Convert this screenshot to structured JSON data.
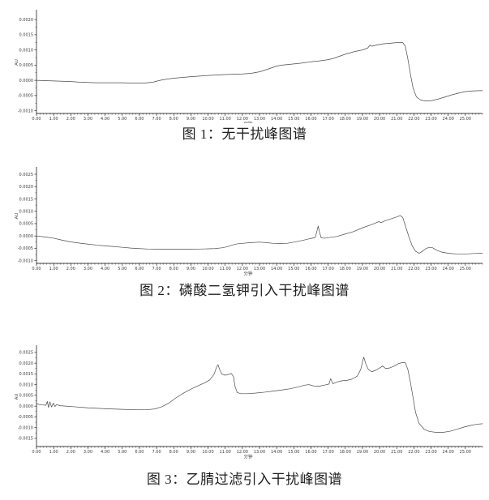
{
  "page": {
    "background": "#ffffff",
    "text_color": "#1f1f1f"
  },
  "figures": [
    {
      "caption": "图 1：无干扰峰图谱"
    },
    {
      "caption": "图 2：磷酸二氢钾引入干扰峰图谱"
    },
    {
      "caption": "图 3：乙腈过滤引入干扰峰图谱"
    }
  ],
  "chart_data": [
    {
      "type": "line",
      "title": "无干扰峰图谱",
      "xlabel": "分钟",
      "ylabel": "AU",
      "xlim": [
        0,
        26
      ],
      "ylim": [
        -0.00109,
        0.00227
      ],
      "x_tick_start": 0,
      "x_tick_end": 25,
      "x_tick_step": 1,
      "x_minor_step": 0.2,
      "x_tick_decimals": 2,
      "y_tick_decimals": 4,
      "y_ticks": [
        0.002,
        0.0015,
        0.001,
        0.0005,
        0.0,
        -0.0005,
        -0.001
      ],
      "grid": false,
      "legend": false,
      "axis_color": "#000000",
      "line_color": "#4a4a4a",
      "tick_label_color": "#3c3c3c",
      "series": [
        {
          "name": "blank-baseline",
          "points": [
            [
              0,
              0
            ],
            [
              0.5,
              -1e-05
            ],
            [
              1,
              -2e-05
            ],
            [
              1.5,
              -3e-05
            ],
            [
              2,
              -4e-05
            ],
            [
              2.5,
              -6e-05
            ],
            [
              3,
              -7e-05
            ],
            [
              3.5,
              -8e-05
            ],
            [
              4,
              -8e-05
            ],
            [
              5,
              -8e-05
            ],
            [
              5.5,
              -9e-05
            ],
            [
              6.3,
              -9e-05
            ],
            [
              6.8,
              -6e-05
            ],
            [
              7.2,
              0
            ],
            [
              7.6,
              4e-05
            ],
            [
              8,
              7e-05
            ],
            [
              9,
              0.00012
            ],
            [
              10,
              0.00016
            ],
            [
              11,
              0.00019
            ],
            [
              12,
              0.00021
            ],
            [
              12.5,
              0.00023
            ],
            [
              13,
              0.00028
            ],
            [
              13.5,
              0.00037
            ],
            [
              14,
              0.00047
            ],
            [
              14.3,
              0.0005
            ],
            [
              15,
              0.00054
            ],
            [
              15.5,
              0.00057
            ],
            [
              16,
              0.00061
            ],
            [
              16.5,
              0.00064
            ],
            [
              17,
              0.00068
            ],
            [
              17.3,
              0.00072
            ],
            [
              17.6,
              0.00078
            ],
            [
              18,
              0.00086
            ],
            [
              18.5,
              0.00094
            ],
            [
              19,
              0.001
            ],
            [
              19.3,
              0.00106
            ],
            [
              19.45,
              0.00116
            ],
            [
              19.55,
              0.00112
            ],
            [
              19.8,
              0.00116
            ],
            [
              20.2,
              0.0012
            ],
            [
              20.6,
              0.00122
            ],
            [
              21,
              0.00124
            ],
            [
              21.35,
              0.00124
            ],
            [
              21.5,
              0.00112
            ],
            [
              21.65,
              0.0007
            ],
            [
              21.8,
              0.0002
            ],
            [
              21.95,
              -0.00025
            ],
            [
              22.15,
              -0.00055
            ],
            [
              22.4,
              -0.00065
            ],
            [
              22.7,
              -0.00068
            ],
            [
              23,
              -0.00067
            ],
            [
              23.4,
              -0.00062
            ],
            [
              23.8,
              -0.00055
            ],
            [
              24.2,
              -0.00048
            ],
            [
              24.6,
              -0.00042
            ],
            [
              25,
              -0.00037
            ],
            [
              25.4,
              -0.00035
            ],
            [
              25.8,
              -0.00034
            ],
            [
              26,
              -0.00034
            ]
          ]
        }
      ]
    },
    {
      "type": "line",
      "title": "磷酸二氢钾引入干扰峰图谱",
      "xlabel": "分钟",
      "ylabel": "AU",
      "xlim": [
        0,
        26
      ],
      "ylim": [
        -0.00111,
        0.00273
      ],
      "x_tick_start": 0,
      "x_tick_end": 25,
      "x_tick_step": 1,
      "x_minor_step": 0.2,
      "x_tick_decimals": 2,
      "y_tick_decimals": 4,
      "y_ticks": [
        0.0025,
        0.002,
        0.0015,
        0.001,
        0.0005,
        0.0,
        -0.0005,
        -0.001
      ],
      "grid": false,
      "legend": false,
      "axis_color": "#000000",
      "line_color": "#4a4a4a",
      "tick_label_color": "#3c3c3c",
      "series": [
        {
          "name": "kh2po4-baseline",
          "points": [
            [
              0,
              0
            ],
            [
              0.5,
              -4e-05
            ],
            [
              1,
              -9e-05
            ],
            [
              1.5,
              -0.00017
            ],
            [
              2,
              -0.00024
            ],
            [
              2.5,
              -0.00029
            ],
            [
              3,
              -0.00033
            ],
            [
              3.5,
              -0.00037
            ],
            [
              4,
              -0.0004
            ],
            [
              4.5,
              -0.00043
            ],
            [
              5,
              -0.00046
            ],
            [
              5.5,
              -0.00049
            ],
            [
              6,
              -0.00051
            ],
            [
              6.5,
              -0.00053
            ],
            [
              7,
              -0.00054
            ],
            [
              8,
              -0.00054
            ],
            [
              9,
              -0.00054
            ],
            [
              9.5,
              -0.00053
            ],
            [
              10,
              -0.00052
            ],
            [
              10.4,
              -0.00051
            ],
            [
              10.8,
              -0.00048
            ],
            [
              11.1,
              -0.00044
            ],
            [
              11.4,
              -0.00037
            ],
            [
              11.7,
              -0.00032
            ],
            [
              12,
              -0.0003
            ],
            [
              12.5,
              -0.00027
            ],
            [
              13,
              -0.00025
            ],
            [
              13.4,
              -0.00027
            ],
            [
              13.8,
              -0.0003
            ],
            [
              14.2,
              -0.00031
            ],
            [
              14.6,
              -0.0003
            ],
            [
              15,
              -0.00025
            ],
            [
              15.5,
              -0.00018
            ],
            [
              16,
              -0.0001
            ],
            [
              16.25,
              -6e-05
            ],
            [
              16.35,
              0.0002
            ],
            [
              16.42,
              0.0004
            ],
            [
              16.5,
              0.00015
            ],
            [
              16.6,
              -8e-05
            ],
            [
              16.8,
              -9e-05
            ],
            [
              17,
              -7e-05
            ],
            [
              17.5,
              -2e-05
            ],
            [
              18,
              8e-05
            ],
            [
              18.5,
              0.00018
            ],
            [
              19,
              0.00033
            ],
            [
              19.5,
              0.00045
            ],
            [
              19.85,
              0.00055
            ],
            [
              19.95,
              0.00058
            ],
            [
              20.1,
              0.00054
            ],
            [
              20.3,
              0.00061
            ],
            [
              20.7,
              0.0007
            ],
            [
              21,
              0.00077
            ],
            [
              21.2,
              0.00083
            ],
            [
              21.35,
              0.00075
            ],
            [
              21.5,
              0.00042
            ],
            [
              21.7,
              -2e-05
            ],
            [
              21.9,
              -0.0004
            ],
            [
              22.1,
              -0.00062
            ],
            [
              22.3,
              -0.0007
            ],
            [
              22.5,
              -0.00062
            ],
            [
              22.7,
              -0.00051
            ],
            [
              22.9,
              -0.00046
            ],
            [
              23.1,
              -0.00048
            ],
            [
              23.3,
              -0.00057
            ],
            [
              23.6,
              -0.00065
            ],
            [
              24,
              -0.0007
            ],
            [
              24.5,
              -0.00073
            ],
            [
              25,
              -0.00073
            ],
            [
              25.5,
              -0.00071
            ],
            [
              26,
              -0.0007
            ]
          ]
        }
      ]
    },
    {
      "type": "line",
      "title": "乙腈过滤引入干扰峰图谱",
      "xlabel": "分钟",
      "ylabel": "AU",
      "xlim": [
        0,
        26
      ],
      "ylim": [
        -0.00188,
        0.00276
      ],
      "x_tick_start": 0,
      "x_tick_end": 25,
      "x_tick_step": 1,
      "x_minor_step": 0.2,
      "x_tick_decimals": 2,
      "y_tick_decimals": 4,
      "y_ticks": [
        0.0025,
        0.002,
        0.0015,
        0.001,
        0.0005,
        0.0,
        -0.0005,
        -0.001,
        -0.0015
      ],
      "grid": false,
      "legend": false,
      "axis_color": "#000000",
      "line_color": "#4a4a4a",
      "tick_label_color": "#3c3c3c",
      "series": [
        {
          "name": "acetonitrile-baseline",
          "points": [
            [
              0,
              0.0001
            ],
            [
              0.3,
              6e-05
            ],
            [
              0.55,
              4e-05
            ],
            [
              0.63,
              0.00022
            ],
            [
              0.7,
              -6e-05
            ],
            [
              0.78,
              0.0002
            ],
            [
              0.88,
              -4e-05
            ],
            [
              0.98,
              0.00014
            ],
            [
              1.08,
              -2e-05
            ],
            [
              1.18,
              8e-05
            ],
            [
              1.35,
              2e-05
            ],
            [
              1.7,
              0
            ],
            [
              2.2,
              -3e-05
            ],
            [
              3,
              -8e-05
            ],
            [
              4,
              -0.00012
            ],
            [
              5,
              -0.00015
            ],
            [
              5.8,
              -0.00017
            ],
            [
              6.4,
              -0.00017
            ],
            [
              6.9,
              -0.00013
            ],
            [
              7.3,
              -3e-05
            ],
            [
              7.7,
              0.00013
            ],
            [
              8.1,
              0.00037
            ],
            [
              8.6,
              0.00062
            ],
            [
              9.1,
              0.00083
            ],
            [
              9.5,
              0.00098
            ],
            [
              9.8,
              0.00108
            ],
            [
              10.1,
              0.00122
            ],
            [
              10.35,
              0.00148
            ],
            [
              10.5,
              0.00182
            ],
            [
              10.58,
              0.00193
            ],
            [
              10.68,
              0.0017
            ],
            [
              10.8,
              0.0015
            ],
            [
              11,
              0.00144
            ],
            [
              11.2,
              0.00148
            ],
            [
              11.35,
              0.00152
            ],
            [
              11.48,
              0.00138
            ],
            [
              11.58,
              0.0009
            ],
            [
              11.7,
              0.00064
            ],
            [
              11.9,
              0.00058
            ],
            [
              12.3,
              0.00058
            ],
            [
              12.8,
              0.00061
            ],
            [
              13.3,
              0.00065
            ],
            [
              13.8,
              0.0007
            ],
            [
              14.3,
              0.00075
            ],
            [
              14.8,
              0.00081
            ],
            [
              15.3,
              0.0009
            ],
            [
              15.65,
              0.00098
            ],
            [
              15.9,
              0.001
            ],
            [
              16.15,
              0.00094
            ],
            [
              16.5,
              0.00093
            ],
            [
              16.8,
              0.00098
            ],
            [
              17.05,
              0.00103
            ],
            [
              17.15,
              0.00128
            ],
            [
              17.28,
              0.00104
            ],
            [
              17.5,
              0.00112
            ],
            [
              17.8,
              0.00118
            ],
            [
              18.1,
              0.0012
            ],
            [
              18.4,
              0.00126
            ],
            [
              18.7,
              0.0014
            ],
            [
              18.9,
              0.0017
            ],
            [
              19,
              0.00205
            ],
            [
              19.08,
              0.00228
            ],
            [
              19.2,
              0.00196
            ],
            [
              19.35,
              0.0017
            ],
            [
              19.55,
              0.0016
            ],
            [
              19.8,
              0.00168
            ],
            [
              20.05,
              0.0018
            ],
            [
              20.18,
              0.00187
            ],
            [
              20.35,
              0.00175
            ],
            [
              20.6,
              0.00178
            ],
            [
              20.9,
              0.00188
            ],
            [
              21.1,
              0.00198
            ],
            [
              21.3,
              0.00202
            ],
            [
              21.5,
              0.00202
            ],
            [
              21.65,
              0.0017
            ],
            [
              21.8,
              0.0011
            ],
            [
              21.95,
              0.0004
            ],
            [
              22.1,
              -0.0003
            ],
            [
              22.3,
              -0.0008
            ],
            [
              22.6,
              -0.00108
            ],
            [
              22.9,
              -0.00118
            ],
            [
              23.3,
              -0.00122
            ],
            [
              23.7,
              -0.00122
            ],
            [
              24.1,
              -0.00117
            ],
            [
              24.5,
              -0.00108
            ],
            [
              24.9,
              -0.00098
            ],
            [
              25.3,
              -0.0009
            ],
            [
              25.7,
              -0.00084
            ],
            [
              26,
              -0.00082
            ]
          ]
        }
      ]
    }
  ]
}
